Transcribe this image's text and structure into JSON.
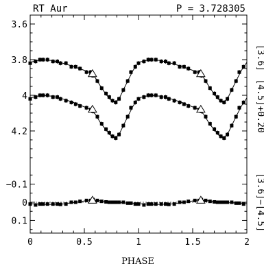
{
  "chart_data": {
    "type": "scatter",
    "title_left": "RT Aur",
    "title_right": "P = 3.728305",
    "xlabel": "PHASE",
    "xlim": [
      0,
      2
    ],
    "x_ticks": [
      "0",
      "0.5",
      "1",
      "1.5",
      "2"
    ],
    "x_tick_values": [
      0,
      0.5,
      1,
      1.5,
      2
    ],
    "upper_panel": {
      "ylim": [
        4.35,
        3.55
      ],
      "y_ticks": [
        "3.6",
        "3.8",
        "4",
        "4.2"
      ],
      "y_tick_values": [
        3.6,
        3.8,
        4.0,
        4.2
      ],
      "series": [
        {
          "name": "[3.6]",
          "x": [
            0.0,
            0.05,
            0.09,
            0.12,
            0.16,
            0.21,
            0.25,
            0.28,
            0.33,
            0.38,
            0.42,
            0.46,
            0.52,
            0.56,
            0.58,
            0.62,
            0.66,
            0.7,
            0.73,
            0.76,
            0.79,
            0.82,
            0.86,
            0.9,
            0.93,
            0.97
          ],
          "y": [
            3.82,
            3.81,
            3.8,
            3.8,
            3.8,
            3.81,
            3.81,
            3.82,
            3.82,
            3.84,
            3.84,
            3.85,
            3.87,
            3.87,
            3.89,
            3.92,
            3.96,
            3.99,
            4.01,
            4.03,
            4.04,
            4.02,
            3.97,
            3.92,
            3.87,
            3.84
          ],
          "err": [
            0.012,
            0.012,
            0.012,
            0.012,
            0.012,
            0.012,
            0.012,
            0.012,
            0.012,
            0.012,
            0.012,
            0.012,
            0.012,
            0.012,
            0.012,
            0.012,
            0.012,
            0.012,
            0.012,
            0.012,
            0.012,
            0.012,
            0.012,
            0.012,
            0.012,
            0.012
          ],
          "open_triangle_x": [
            0.575
          ],
          "open_triangle_y": [
            3.88
          ]
        },
        {
          "name": "[4.5]+0.20",
          "x": [
            0.0,
            0.05,
            0.09,
            0.12,
            0.16,
            0.21,
            0.25,
            0.28,
            0.33,
            0.38,
            0.42,
            0.46,
            0.52,
            0.56,
            0.58,
            0.62,
            0.66,
            0.7,
            0.73,
            0.76,
            0.79,
            0.82,
            0.86,
            0.9,
            0.93,
            0.97
          ],
          "y": [
            4.02,
            4.01,
            4.0,
            4.0,
            4.0,
            4.01,
            4.01,
            4.02,
            4.03,
            4.04,
            4.05,
            4.06,
            4.07,
            4.08,
            4.09,
            4.12,
            4.16,
            4.19,
            4.21,
            4.23,
            4.24,
            4.22,
            4.17,
            4.12,
            4.07,
            4.04
          ],
          "err": [
            0.012,
            0.012,
            0.012,
            0.012,
            0.012,
            0.012,
            0.012,
            0.012,
            0.012,
            0.012,
            0.012,
            0.012,
            0.012,
            0.012,
            0.012,
            0.012,
            0.012,
            0.012,
            0.012,
            0.012,
            0.012,
            0.012,
            0.012,
            0.012,
            0.012,
            0.012
          ],
          "open_triangle_x": [
            0.575
          ],
          "open_triangle_y": [
            4.08
          ]
        }
      ],
      "right_labels": [
        "[3.6]",
        "[4.5]+0.20"
      ]
    },
    "lower_panel": {
      "ylim": [
        0.17,
        -0.17
      ],
      "y_ticks": [
        "−0.1",
        "0",
        "0.1"
      ],
      "y_tick_values": [
        -0.1,
        0.0,
        0.1
      ],
      "series": [
        {
          "name": "[3.6]−[4.5]",
          "x": [
            0.0,
            0.05,
            0.09,
            0.12,
            0.16,
            0.21,
            0.25,
            0.28,
            0.33,
            0.38,
            0.42,
            0.46,
            0.52,
            0.56,
            0.58,
            0.62,
            0.66,
            0.7,
            0.73,
            0.76,
            0.79,
            0.82,
            0.86,
            0.9,
            0.93,
            0.97
          ],
          "y": [
            0.01,
            0.015,
            0.01,
            0.01,
            0.01,
            0.01,
            0.01,
            0.012,
            0.01,
            0.0,
            0.0,
            -0.005,
            -0.01,
            -0.01,
            -0.015,
            -0.01,
            -0.005,
            -0.002,
            0.0,
            0.0,
            0.0,
            0.0,
            0.0,
            0.005,
            0.005,
            0.01
          ],
          "err": [
            0.008,
            0.008,
            0.008,
            0.008,
            0.008,
            0.008,
            0.008,
            0.008,
            0.008,
            0.008,
            0.008,
            0.008,
            0.008,
            0.008,
            0.008,
            0.008,
            0.008,
            0.008,
            0.008,
            0.008,
            0.008,
            0.008,
            0.008,
            0.008,
            0.008,
            0.008
          ],
          "open_triangle_x": [
            0.575
          ],
          "open_triangle_y": [
            -0.01
          ]
        }
      ],
      "right_labels": [
        "[3.6]−[4.5]"
      ],
      "zero_line": true
    },
    "model_curve": {
      "upper_3_6": [
        [
          0.0,
          3.815
        ],
        [
          0.1,
          3.8
        ],
        [
          0.2,
          3.805
        ],
        [
          0.3,
          3.82
        ],
        [
          0.4,
          3.838
        ],
        [
          0.5,
          3.86
        ],
        [
          0.55,
          3.872
        ],
        [
          0.6,
          3.9
        ],
        [
          0.65,
          3.95
        ],
        [
          0.7,
          3.995
        ],
        [
          0.75,
          4.03
        ],
        [
          0.78,
          4.04
        ],
        [
          0.82,
          4.02
        ],
        [
          0.86,
          3.97
        ],
        [
          0.9,
          3.92
        ],
        [
          0.95,
          3.86
        ],
        [
          1.0,
          3.815
        ]
      ],
      "upper_4_5": [
        [
          0.0,
          4.015
        ],
        [
          0.1,
          4.0
        ],
        [
          0.2,
          4.005
        ],
        [
          0.3,
          4.02
        ],
        [
          0.4,
          4.04
        ],
        [
          0.5,
          4.065
        ],
        [
          0.55,
          4.078
        ],
        [
          0.6,
          4.105
        ],
        [
          0.65,
          4.155
        ],
        [
          0.7,
          4.195
        ],
        [
          0.75,
          4.23
        ],
        [
          0.78,
          4.24
        ],
        [
          0.82,
          4.22
        ],
        [
          0.86,
          4.17
        ],
        [
          0.9,
          4.12
        ],
        [
          0.95,
          4.06
        ],
        [
          1.0,
          4.015
        ]
      ],
      "lower_color": [
        [
          0.0,
          0.008
        ],
        [
          0.15,
          0.012
        ],
        [
          0.3,
          0.01
        ],
        [
          0.45,
          -0.002
        ],
        [
          0.55,
          -0.012
        ],
        [
          0.65,
          -0.008
        ],
        [
          0.75,
          0.0
        ],
        [
          0.9,
          0.005
        ],
        [
          1.0,
          0.008
        ]
      ]
    }
  }
}
